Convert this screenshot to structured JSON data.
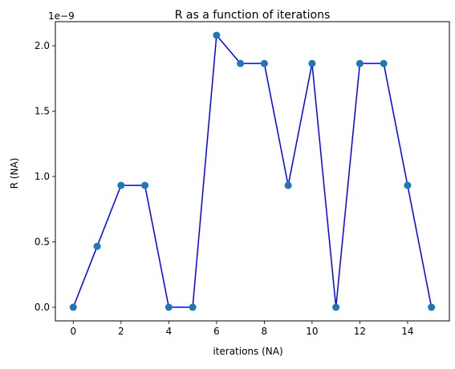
{
  "chart_data": {
    "type": "line",
    "title": "R as a function of iterations",
    "xlabel": "iterations (NA)",
    "ylabel": "R (NA)",
    "offset_label": "1e−9",
    "xlim": [
      -0.75,
      15.75
    ],
    "ylim": [
      -1.04e-10,
      2.184e-09
    ],
    "x_ticks": [
      0,
      2,
      4,
      6,
      8,
      10,
      12,
      14
    ],
    "x_tick_labels": [
      "0",
      "2",
      "4",
      "6",
      "8",
      "10",
      "12",
      "14"
    ],
    "y_ticks": [
      0,
      5e-10,
      1e-09,
      1.5e-09,
      2e-09
    ],
    "y_tick_labels": [
      "0.0",
      "0.5",
      "1.0",
      "1.5",
      "2.0"
    ],
    "grid": false,
    "series": [
      {
        "style": "line",
        "color": "#0000ff",
        "x": [
          0,
          1,
          2,
          3,
          4,
          5,
          6,
          7,
          8,
          9,
          10,
          11,
          12,
          13,
          14,
          15
        ],
        "y": [
          0,
          4.66e-10,
          9.32e-10,
          9.32e-10,
          0,
          0,
          2.08e-09,
          1.864e-09,
          1.864e-09,
          9.32e-10,
          1.864e-09,
          0,
          1.864e-09,
          1.864e-09,
          9.32e-10,
          0
        ]
      },
      {
        "style": "scatter",
        "color": "#1f77b4",
        "x": [
          0,
          1,
          2,
          3,
          4,
          5,
          6,
          7,
          8,
          9,
          10,
          11,
          12,
          13,
          14,
          15
        ],
        "y": [
          0,
          4.66e-10,
          9.32e-10,
          9.32e-10,
          0,
          0,
          2.08e-09,
          1.864e-09,
          1.864e-09,
          9.32e-10,
          1.864e-09,
          0,
          1.864e-09,
          1.864e-09,
          9.32e-10,
          0
        ]
      }
    ]
  }
}
